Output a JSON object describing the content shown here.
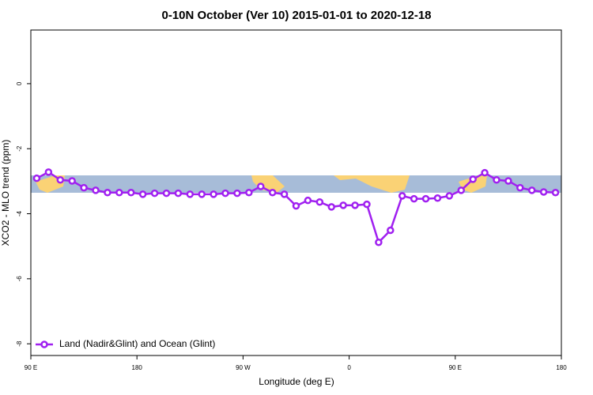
{
  "chart_data": {
    "type": "line",
    "title": "0-10N October (Ver 10)   2015-01-01 to 2020-12-18",
    "xlabel": "Longitude (deg E)",
    "ylabel": "XCO2 - MLO trend (ppm)",
    "x": [
      95,
      105,
      115,
      125,
      135,
      145,
      155,
      165,
      175,
      185,
      195,
      205,
      215,
      225,
      235,
      245,
      255,
      265,
      275,
      285,
      295,
      305,
      315,
      325,
      335,
      345,
      355,
      365,
      375,
      385,
      395,
      405,
      415,
      425,
      435,
      445,
      455,
      465,
      475,
      485,
      495,
      505,
      515,
      525,
      535
    ],
    "series": [
      {
        "name": "Land (Nadir&Glint) and Ocean (Glint)",
        "color": "#a020f0",
        "values": [
          -2.91,
          -2.72,
          -2.96,
          -2.99,
          -3.2,
          -3.28,
          -3.35,
          -3.35,
          -3.35,
          -3.4,
          -3.37,
          -3.37,
          -3.37,
          -3.4,
          -3.4,
          -3.4,
          -3.37,
          -3.37,
          -3.35,
          -3.16,
          -3.35,
          -3.4,
          -3.76,
          -3.59,
          -3.64,
          -3.79,
          -3.74,
          -3.74,
          -3.71,
          -4.88,
          -4.51,
          -3.45,
          -3.54,
          -3.54,
          -3.52,
          -3.45,
          -3.28,
          -2.94,
          -2.74,
          -2.96,
          -2.99,
          -3.2,
          -3.28,
          -3.33,
          -3.35
        ]
      }
    ],
    "xlim": [
      90,
      540
    ],
    "xticks": [
      {
        "value": 90,
        "label": "90 E"
      },
      180,
      {
        "value": 270,
        "label": "90 W"
      },
      {
        "value": 360,
        "label": "0"
      },
      {
        "value": 450,
        "label": "90 E"
      },
      {
        "value": 540,
        "label": "180"
      }
    ],
    "ylim": [
      -8.36,
      1.65
    ],
    "yticks": [
      0,
      -2,
      -4,
      -6,
      -8
    ],
    "legend": "bottom-left"
  }
}
